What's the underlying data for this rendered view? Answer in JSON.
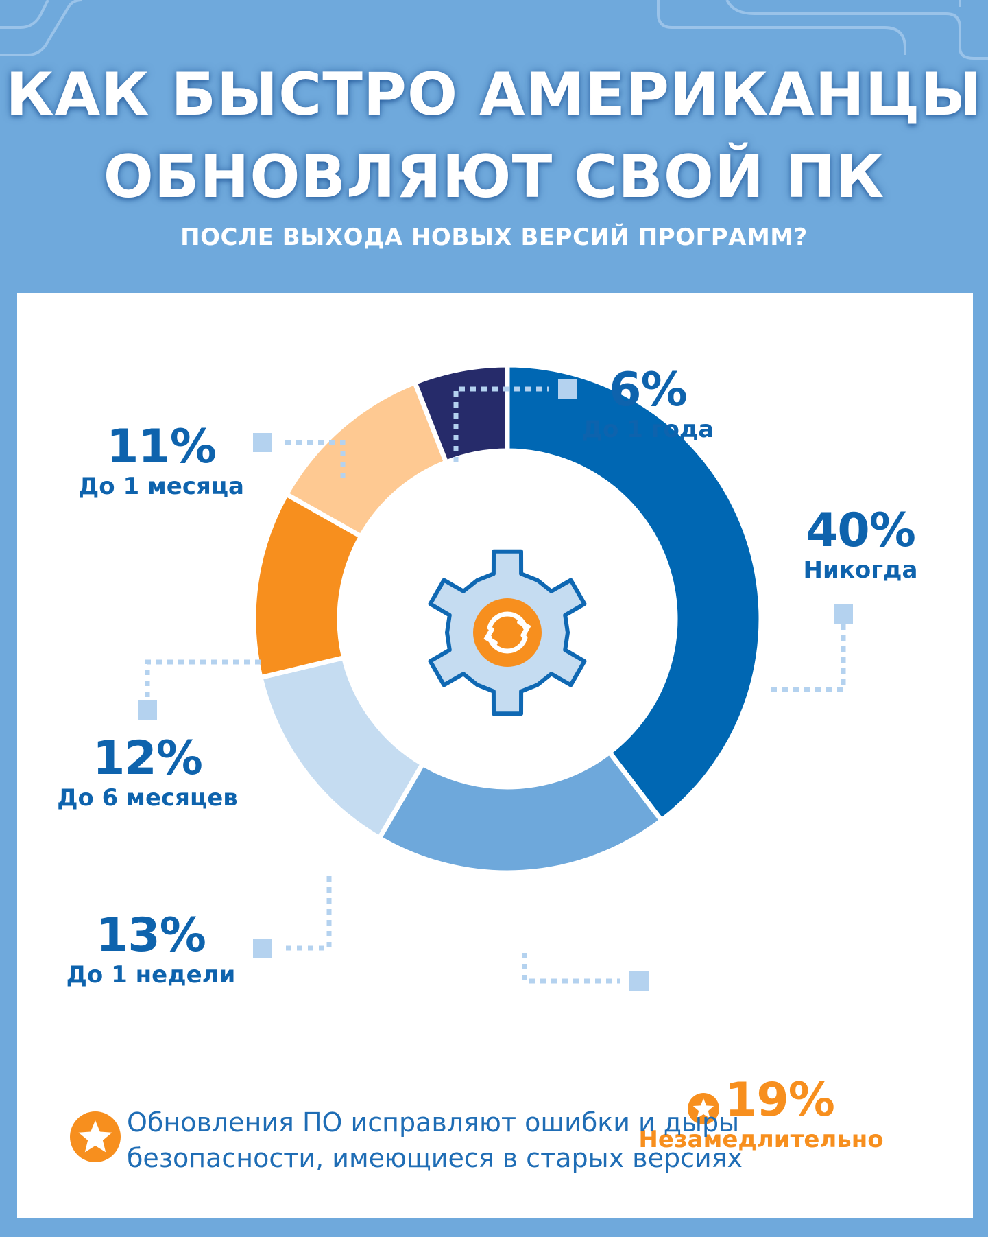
{
  "header": {
    "title_line1": "КАК БЫСТРО АМЕРИКАНЦЫ",
    "title_line2": "ОБНОВЛЯЮТ СВОЙ ПК",
    "subtitle": "ПОСЛЕ ВЫХОДА НОВЫХ ВЕРСИЙ ПРОГРАММ?"
  },
  "chart_data": {
    "type": "pie",
    "donut": true,
    "start": "top, clockwise",
    "categories": [
      "Никогда",
      "Незамедлительно",
      "До 1 недели",
      "До 6 месяцев",
      "До 1 месяца",
      "До 1 года"
    ],
    "values": [
      40,
      19,
      13,
      12,
      11,
      6
    ],
    "labels": [
      "40%",
      "19%",
      "13%",
      "12%",
      "11%",
      "6%"
    ],
    "colors": [
      "#0067b3",
      "#6ea8db",
      "#c5dcf1",
      "#f78f1e",
      "#fec992",
      "#262b6a"
    ],
    "highlight": "Незамедлительно",
    "highlight_color": "#f78f1e",
    "center_icon": "gear-refresh-icon"
  },
  "footnote": {
    "icon": "star-icon",
    "text_line1": "Обновления ПО исправляют ошибки и дыры",
    "text_line2": "безопасности, имеющиеся в старых версиях"
  }
}
